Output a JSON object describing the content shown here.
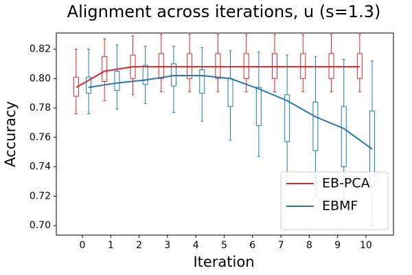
{
  "chart_data": {
    "type": "box-line",
    "title": "Alignment across iterations, u (s=1.3)",
    "x_label": "Iteration",
    "y_label": "Accuracy",
    "x": [
      0,
      1,
      2,
      3,
      4,
      5,
      6,
      7,
      8,
      9,
      10
    ],
    "xlim": [
      -0.92,
      10.97
    ],
    "xticks": [
      0,
      1,
      2,
      3,
      4,
      5,
      6,
      7,
      8,
      9,
      10
    ],
    "ylim": [
      0.6935,
      0.831
    ],
    "yticks": [
      {
        "value": 0.7,
        "label": "0.70"
      },
      0.72,
      0.74,
      0.76,
      0.78,
      {
        "value": 0.8,
        "label": "0.80"
      },
      0.82
    ],
    "legend": "lower right",
    "series": [
      {
        "name": "EB-PCA",
        "color": "#d62728",
        "values": [
          0.794,
          0.805,
          0.808,
          0.808,
          0.808,
          0.808,
          0.808,
          0.808,
          0.808,
          0.808,
          0.808
        ],
        "whisker_low": [
          0.776,
          0.785,
          0.789,
          0.791,
          0.791,
          0.791,
          0.791,
          0.791,
          0.791,
          0.791,
          0.791
        ],
        "q1": [
          0.788,
          0.798,
          0.8,
          0.8,
          0.8,
          0.8,
          0.8,
          0.8,
          0.8,
          0.8,
          0.8
        ],
        "q3": [
          0.801,
          0.815,
          0.816,
          0.817,
          0.817,
          0.817,
          0.817,
          0.817,
          0.817,
          0.817,
          0.817
        ],
        "whisker_high": [
          0.82,
          0.827,
          0.829,
          0.83,
          0.83,
          0.83,
          0.83,
          0.83,
          0.83,
          0.83,
          0.83
        ]
      },
      {
        "name": "EBMF",
        "color": "#1f77b4",
        "values": [
          0.794,
          0.797,
          0.799,
          0.802,
          0.802,
          0.8,
          0.793,
          0.785,
          0.774,
          0.766,
          0.752
        ],
        "whisker_low": [
          0.776,
          0.779,
          0.783,
          0.777,
          0.771,
          0.758,
          0.747,
          0.731,
          0.72,
          0.716,
          0.7
        ],
        "q1": [
          0.79,
          0.792,
          0.796,
          0.795,
          0.79,
          0.781,
          0.768,
          0.757,
          0.751,
          0.74,
          0.727
        ],
        "q3": [
          0.801,
          0.805,
          0.809,
          0.81,
          0.806,
          0.8,
          0.794,
          0.789,
          0.784,
          0.781,
          0.778
        ],
        "whisker_high": [
          0.82,
          0.823,
          0.822,
          0.822,
          0.821,
          0.819,
          0.818,
          0.816,
          0.815,
          0.813,
          0.812
        ]
      }
    ]
  }
}
